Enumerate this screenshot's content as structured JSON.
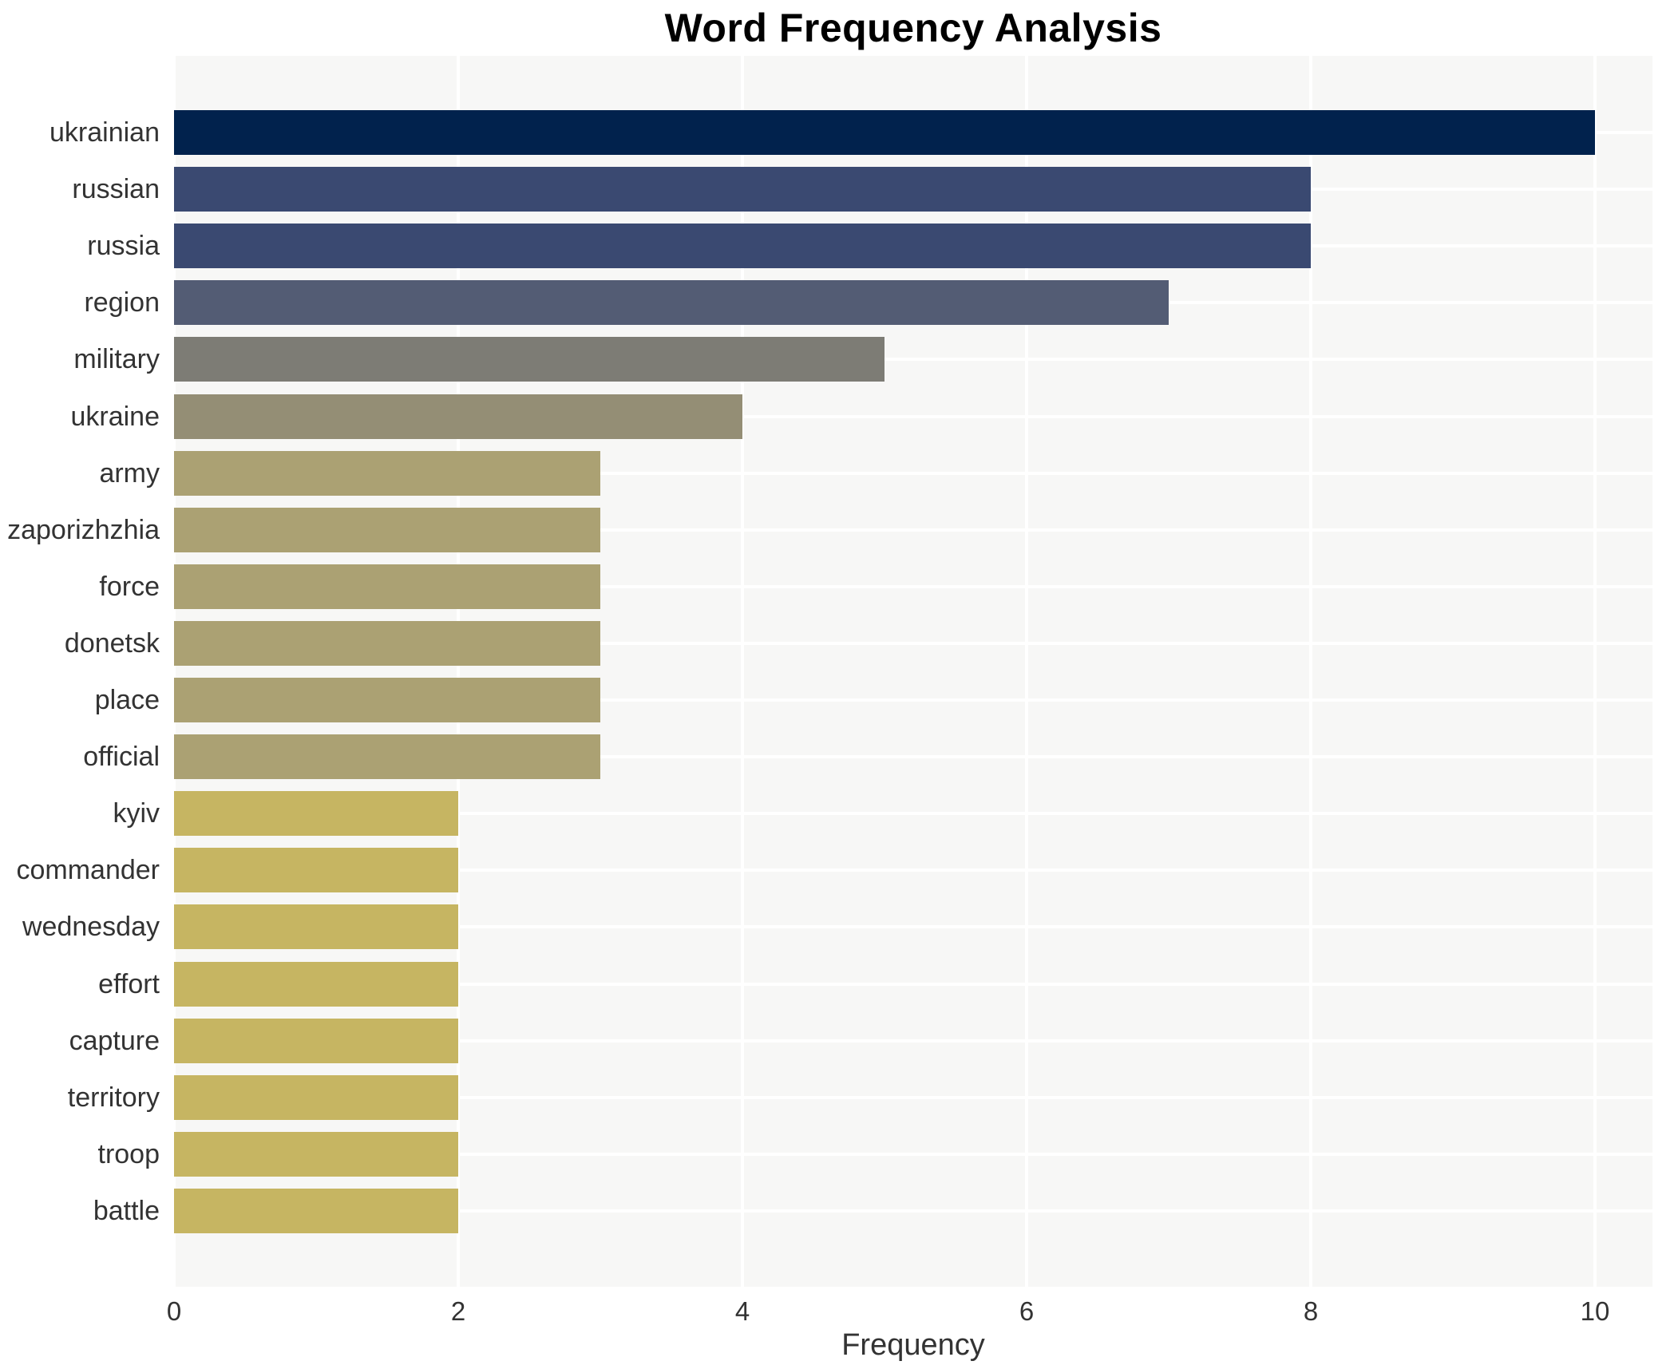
{
  "chart_data": {
    "type": "bar",
    "orientation": "horizontal",
    "title": "Word Frequency Analysis",
    "xlabel": "Frequency",
    "ylabel": "",
    "categories": [
      "ukrainian",
      "russian",
      "russia",
      "region",
      "military",
      "ukraine",
      "army",
      "zaporizhzhia",
      "force",
      "donetsk",
      "place",
      "official",
      "kyiv",
      "commander",
      "wednesday",
      "effort",
      "capture",
      "territory",
      "troop",
      "battle"
    ],
    "values": [
      10,
      8,
      8,
      7,
      5,
      4,
      3,
      3,
      3,
      3,
      3,
      3,
      2,
      2,
      2,
      2,
      2,
      2,
      2,
      2
    ],
    "bar_colors": [
      "#01224d",
      "#3a4971",
      "#3a4971",
      "#535c74",
      "#7d7c75",
      "#948e75",
      "#aba173",
      "#aba173",
      "#aba173",
      "#aba173",
      "#aba173",
      "#aba173",
      "#c6b562",
      "#c6b562",
      "#c6b562",
      "#c6b562",
      "#c6b562",
      "#c6b562",
      "#c6b562",
      "#c6b562"
    ],
    "xticks": [
      0,
      2,
      4,
      6,
      8,
      10
    ],
    "xlim": [
      0,
      10.4
    ],
    "grid": true,
    "legend": "none",
    "panel_background": "#f7f7f6",
    "gridline_color": "#ffffff",
    "text_color": "#333333",
    "title_color": "#000000"
  }
}
